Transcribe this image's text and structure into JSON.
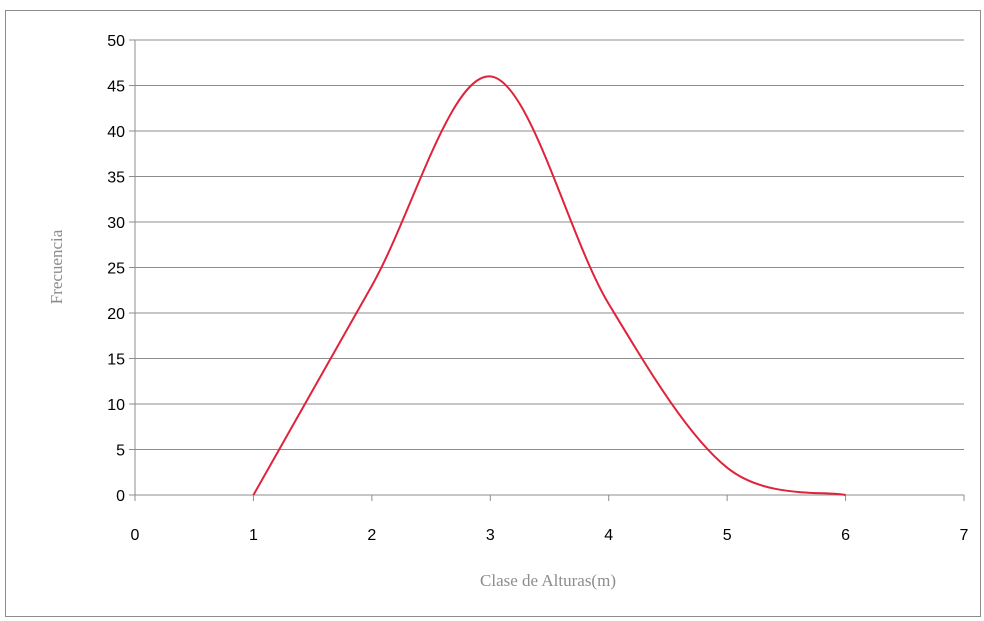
{
  "chart_data": {
    "type": "line",
    "title": "",
    "xlabel": "Clase de Alturas(m)",
    "ylabel": "Frecuencia",
    "xlim": [
      0,
      7
    ],
    "ylim": [
      0,
      50
    ],
    "x_ticks": [
      "0",
      "1",
      "2",
      "3",
      "4",
      "5",
      "6",
      "7"
    ],
    "y_ticks": [
      "0",
      "5",
      "10",
      "15",
      "20",
      "25",
      "30",
      "35",
      "40",
      "45",
      "50"
    ],
    "grid": "horizontal",
    "legend": "none",
    "smooth": true,
    "series": [
      {
        "color": "#e0223a",
        "x": [
          1,
          2,
          3,
          4,
          5,
          6
        ],
        "y": [
          0,
          23,
          46,
          21,
          3,
          0
        ]
      }
    ]
  }
}
